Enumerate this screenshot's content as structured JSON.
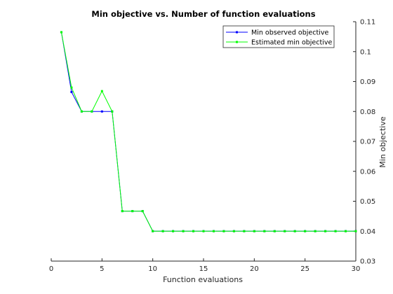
{
  "chart_data": {
    "type": "line",
    "title": "Min objective vs. Number of function evaluations",
    "xlabel": "Function evaluations",
    "ylabel": "Min objective",
    "xlim": [
      0,
      30
    ],
    "ylim": [
      0.03,
      0.11
    ],
    "xticks": [
      0,
      5,
      10,
      15,
      20,
      25,
      30
    ],
    "yticks": [
      0.03,
      0.04,
      0.05,
      0.06,
      0.07,
      0.08,
      0.09,
      0.1,
      0.11
    ],
    "ytick_labels": [
      "0.03",
      "0.04",
      "0.05",
      "0.06",
      "0.07",
      "0.08",
      "0.09",
      "0.1",
      "0.11"
    ],
    "y_axis_location": "right",
    "legend_position": "top-right",
    "grid": false,
    "series": [
      {
        "name": "Min observed objective",
        "color": "#0000ff",
        "x": [
          1,
          2,
          3,
          4,
          5,
          6,
          7,
          8,
          9,
          10,
          11,
          12,
          13,
          14,
          15,
          16,
          17,
          18,
          19,
          20,
          21,
          22,
          23,
          24,
          25,
          26,
          27,
          28,
          29,
          30
        ],
        "y": [
          0.1065,
          0.0865,
          0.08,
          0.08,
          0.08,
          0.08,
          0.0467,
          0.0467,
          0.0467,
          0.04,
          0.04,
          0.04,
          0.04,
          0.04,
          0.04,
          0.04,
          0.04,
          0.04,
          0.04,
          0.04,
          0.04,
          0.04,
          0.04,
          0.04,
          0.04,
          0.04,
          0.04,
          0.04,
          0.04,
          0.04
        ]
      },
      {
        "name": "Estimated min objective",
        "color": "#00ff00",
        "x": [
          1,
          2,
          3,
          4,
          5,
          6,
          7,
          8,
          9,
          10,
          11,
          12,
          13,
          14,
          15,
          16,
          17,
          18,
          19,
          20,
          21,
          22,
          23,
          24,
          25,
          26,
          27,
          28,
          29,
          30
        ],
        "y": [
          0.1065,
          0.088,
          0.08,
          0.08,
          0.0868,
          0.08,
          0.0467,
          0.0467,
          0.0467,
          0.04,
          0.04,
          0.04,
          0.04,
          0.04,
          0.04,
          0.04,
          0.04,
          0.04,
          0.04,
          0.04,
          0.04,
          0.04,
          0.04,
          0.04,
          0.04,
          0.04,
          0.04,
          0.04,
          0.04,
          0.04
        ]
      }
    ]
  }
}
